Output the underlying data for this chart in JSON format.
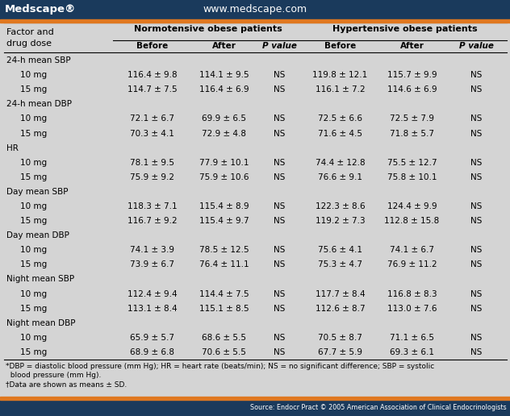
{
  "header_bar_color": "#1a3a5c",
  "orange_bar_color": "#e07820",
  "bg_color": "#d4d4d4",
  "medscape_text": "Medscape®",
  "url_text": "www.medscape.com",
  "source_text": "Source: Endocr Pract © 2005 American Association of Clinical Endocrinologists",
  "footnote1": "*DBP = diastolic blood pressure (mm Hg); HR = heart rate (beats/min); NS = no significant difference; SBP = systolic",
  "footnote2": "  blood pressure (mm Hg).",
  "footnote3": "†Data are shown as means ± SD.",
  "col_header2": "Normotensive obese patients",
  "col_header3": "Hypertensive obese patients",
  "sub_headers": [
    "Before",
    "After",
    "P value",
    "Before",
    "After",
    "P value"
  ],
  "rows": [
    {
      "label": "24-h mean SBP",
      "indent": false,
      "data": [
        "",
        "",
        "",
        "",
        "",
        ""
      ]
    },
    {
      "label": "10 mg",
      "indent": true,
      "data": [
        "116.4 ± 9.8",
        "114.1 ± 9.5",
        "NS",
        "119.8 ± 12.1",
        "115.7 ± 9.9",
        "NS"
      ]
    },
    {
      "label": "15 mg",
      "indent": true,
      "data": [
        "114.7 ± 7.5",
        "116.4 ± 6.9",
        "NS",
        "116.1 ± 7.2",
        "114.6 ± 6.9",
        "NS"
      ]
    },
    {
      "label": "24-h mean DBP",
      "indent": false,
      "data": [
        "",
        "",
        "",
        "",
        "",
        ""
      ]
    },
    {
      "label": "10 mg",
      "indent": true,
      "data": [
        "72.1 ± 6.7",
        "69.9 ± 6.5",
        "NS",
        "72.5 ± 6.6",
        "72.5 ± 7.9",
        "NS"
      ]
    },
    {
      "label": "15 mg",
      "indent": true,
      "data": [
        "70.3 ± 4.1",
        "72.9 ± 4.8",
        "NS",
        "71.6 ± 4.5",
        "71.8 ± 5.7",
        "NS"
      ]
    },
    {
      "label": "HR",
      "indent": false,
      "data": [
        "",
        "",
        "",
        "",
        "",
        ""
      ]
    },
    {
      "label": "10 mg",
      "indent": true,
      "data": [
        "78.1 ± 9.5",
        "77.9 ± 10.1",
        "NS",
        "74.4 ± 12.8",
        "75.5 ± 12.7",
        "NS"
      ]
    },
    {
      "label": "15 mg",
      "indent": true,
      "data": [
        "75.9 ± 9.2",
        "75.9 ± 10.6",
        "NS",
        "76.6 ± 9.1",
        "75.8 ± 10.1",
        "NS"
      ]
    },
    {
      "label": "Day mean SBP",
      "indent": false,
      "data": [
        "",
        "",
        "",
        "",
        "",
        ""
      ]
    },
    {
      "label": "10 mg",
      "indent": true,
      "data": [
        "118.3 ± 7.1",
        "115.4 ± 8.9",
        "NS",
        "122.3 ± 8.6",
        "124.4 ± 9.9",
        "NS"
      ]
    },
    {
      "label": "15 mg",
      "indent": true,
      "data": [
        "116.7 ± 9.2",
        "115.4 ± 9.7",
        "NS",
        "119.2 ± 7.3",
        "112.8 ± 15.8",
        "NS"
      ]
    },
    {
      "label": "Day mean DBP",
      "indent": false,
      "data": [
        "",
        "",
        "",
        "",
        "",
        ""
      ]
    },
    {
      "label": "10 mg",
      "indent": true,
      "data": [
        "74.1 ± 3.9",
        "78.5 ± 12.5",
        "NS",
        "75.6 ± 4.1",
        "74.1 ± 6.7",
        "NS"
      ]
    },
    {
      "label": "15 mg",
      "indent": true,
      "data": [
        "73.9 ± 6.7",
        "76.4 ± 11.1",
        "NS",
        "75.3 ± 4.7",
        "76.9 ± 11.2",
        "NS"
      ]
    },
    {
      "label": "Night mean SBP",
      "indent": false,
      "data": [
        "",
        "",
        "",
        "",
        "",
        ""
      ]
    },
    {
      "label": "10 mg",
      "indent": true,
      "data": [
        "112.4 ± 9.4",
        "114.4 ± 7.5",
        "NS",
        "117.7 ± 8.4",
        "116.8 ± 8.3",
        "NS"
      ]
    },
    {
      "label": "15 mg",
      "indent": true,
      "data": [
        "113.1 ± 8.4",
        "115.1 ± 8.5",
        "NS",
        "112.6 ± 8.7",
        "113.0 ± 7.6",
        "NS"
      ]
    },
    {
      "label": "Night mean DBP",
      "indent": false,
      "data": [
        "",
        "",
        "",
        "",
        "",
        ""
      ]
    },
    {
      "label": "10 mg",
      "indent": true,
      "data": [
        "65.9 ± 5.7",
        "68.6 ± 5.5",
        "NS",
        "70.5 ± 8.7",
        "71.1 ± 6.5",
        "NS"
      ]
    },
    {
      "label": "15 mg",
      "indent": true,
      "data": [
        "68.9 ± 6.8",
        "70.6 ± 5.5",
        "NS",
        "67.7 ± 5.9",
        "69.3 ± 6.1",
        "NS"
      ]
    }
  ]
}
